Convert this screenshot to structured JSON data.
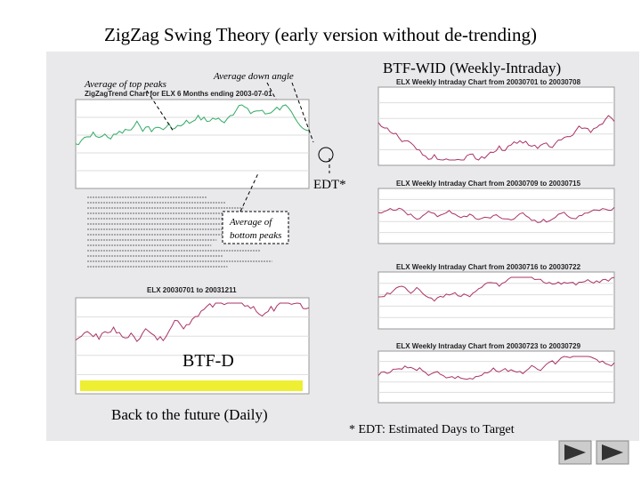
{
  "slide": {
    "title": "ZigZag Swing Theory (early version without de-trending)",
    "labels": {
      "top_peaks": "Average of top peaks",
      "down_angle": "Average down angle",
      "btf_wid": "BTF-WID (Weekly-Intraday)",
      "edt": "EDT*",
      "bottom_peaks_1": "Average of",
      "bottom_peaks_2": "bottom peaks",
      "btf_d": "BTF-D",
      "daily": "Back to the future (Daily)",
      "footnote": "* EDT: Estimated Days to Target"
    },
    "charts": {
      "zigzag": "ZigZagTrend Chart for ELX 6 Months ending 2003-07-01",
      "daily": "ELX 20030701 to 20031211",
      "weekly": [
        "ELX Weekly Intraday Chart from 20030701 to 20030708",
        "ELX Weekly Intraday Chart from 20030709 to 20030715",
        "ELX Weekly Intraday Chart from 20030716 to 20030722",
        "ELX Weekly Intraday Chart from 20030723 to 20030729"
      ]
    }
  }
}
